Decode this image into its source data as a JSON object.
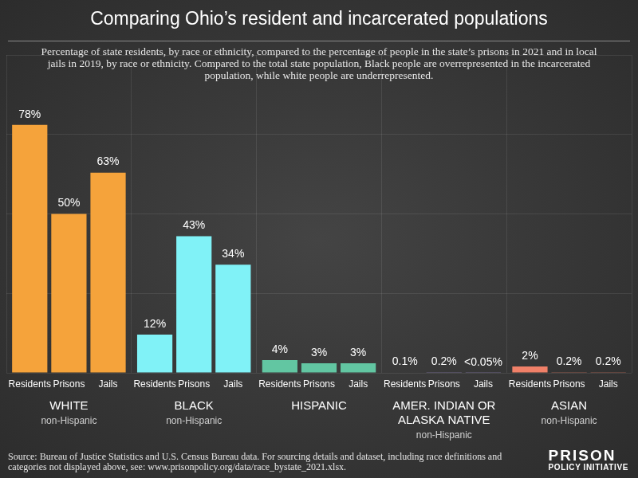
{
  "chart_data": {
    "type": "bar",
    "title": "Comparing Ohio’s resident and incarcerated populations",
    "subtitle": "Percentage of state residents, by race or ethnicity, compared to the percentage of people in the state’s prisons in 2021 and in local jails in 2019, by race or ethnicity. Compared to the total state population, Black people are overrepresented in the incarcerated population, while white people are underrepresented.",
    "categories": [
      "WHITE",
      "BLACK",
      "HISPANIC",
      "AMER. INDIAN OR ALASKA NATIVE",
      "ASIAN"
    ],
    "category_notes": [
      "non-Hispanic",
      "non-Hispanic",
      null,
      "non-Hispanic",
      "non-Hispanic"
    ],
    "colors": [
      "#f5a33b",
      "#80f2f7",
      "#62c6a2",
      "#a58fd6",
      "#f08068"
    ],
    "series": [
      {
        "name": "Residents",
        "values": [
          78,
          12,
          4,
          0.1,
          2
        ],
        "value_labels": [
          "78%",
          "12%",
          "4%",
          "0.1%",
          "2%"
        ]
      },
      {
        "name": "Prisons",
        "values": [
          50,
          43,
          3,
          0.2,
          0.2
        ],
        "value_labels": [
          "50%",
          "43%",
          "3%",
          "0.2%",
          "0.2%"
        ]
      },
      {
        "name": "Jails",
        "values": [
          63,
          34,
          3,
          0.05,
          0.2
        ],
        "value_labels": [
          "63%",
          "34%",
          "3%",
          "<0.05%",
          "0.2%"
        ]
      }
    ],
    "ylim": [
      0,
      100
    ],
    "yticks": [
      0,
      25,
      50,
      75,
      100
    ],
    "grid": true,
    "data_labels": true,
    "tick_labels": "x"
  },
  "source": "Source: Bureau of Justice Statistics and U.S. Census Bureau data. For sourcing details and dataset, including race definitions and categories not displayed above, see: www.prisonpolicy.org/data/race_bystate_2021.xlsx.",
  "logo": [
    "PRISON",
    "POLICY INITIATIVE"
  ]
}
